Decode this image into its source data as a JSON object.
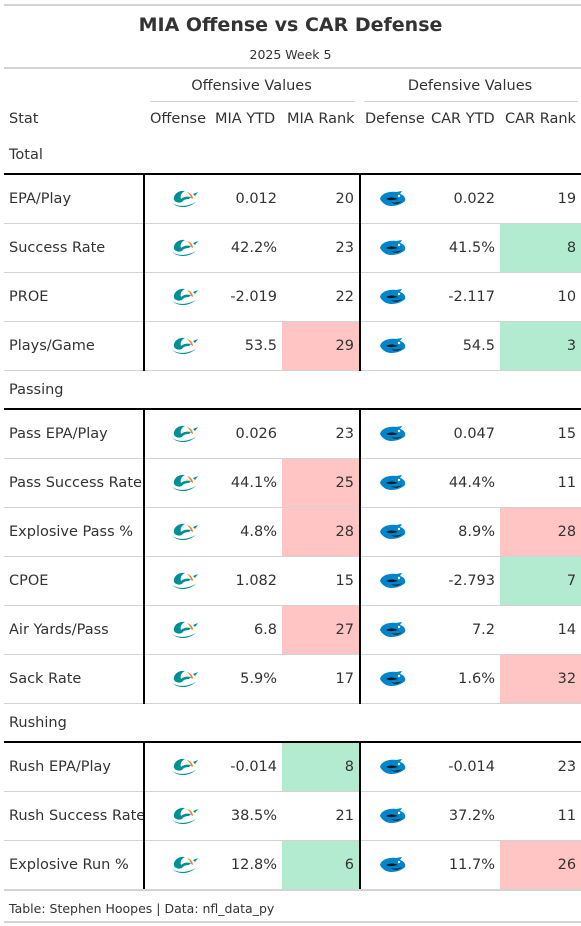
{
  "title": "MIA Offense vs CAR Defense",
  "subtitle": "2025 Week 5",
  "groups": {
    "offense": "Offensive Values",
    "defense": "Defensive Values"
  },
  "columns": {
    "stat": "Stat",
    "offense": "Offense",
    "mia_ytd": "MIA YTD",
    "mia_rank": "MIA Rank",
    "defense": "Defense",
    "car_ytd": "CAR YTD",
    "car_rank": "CAR Rank"
  },
  "icons": {
    "offense_logo": "dolphin-logo-icon",
    "defense_logo": "panther-logo-icon"
  },
  "colors": {
    "good": "#b3ebd0",
    "bad": "#ffc4c4",
    "dolphin_aqua": "#008e97",
    "dolphin_orange": "#f58220",
    "panther_blue": "#0085ca",
    "panther_black": "#101820"
  },
  "sections": [
    {
      "name": "Total",
      "rows": [
        {
          "stat": "EPA/Play",
          "mia_ytd": "0.012",
          "mia_rank": "20",
          "mia_rank_tier": "",
          "car_ytd": "0.022",
          "car_rank": "19",
          "car_rank_tier": ""
        },
        {
          "stat": "Success Rate",
          "mia_ytd": "42.2%",
          "mia_rank": "23",
          "mia_rank_tier": "",
          "car_ytd": "41.5%",
          "car_rank": "8",
          "car_rank_tier": "good"
        },
        {
          "stat": "PROE",
          "mia_ytd": "-2.019",
          "mia_rank": "22",
          "mia_rank_tier": "",
          "car_ytd": "-2.117",
          "car_rank": "10",
          "car_rank_tier": ""
        },
        {
          "stat": "Plays/Game",
          "mia_ytd": "53.5",
          "mia_rank": "29",
          "mia_rank_tier": "bad",
          "car_ytd": "54.5",
          "car_rank": "3",
          "car_rank_tier": "good"
        }
      ]
    },
    {
      "name": "Passing",
      "rows": [
        {
          "stat": "Pass EPA/Play",
          "mia_ytd": "0.026",
          "mia_rank": "23",
          "mia_rank_tier": "",
          "car_ytd": "0.047",
          "car_rank": "15",
          "car_rank_tier": ""
        },
        {
          "stat": "Pass Success Rate",
          "mia_ytd": "44.1%",
          "mia_rank": "25",
          "mia_rank_tier": "bad",
          "car_ytd": "44.4%",
          "car_rank": "11",
          "car_rank_tier": ""
        },
        {
          "stat": "Explosive Pass %",
          "mia_ytd": "4.8%",
          "mia_rank": "28",
          "mia_rank_tier": "bad",
          "car_ytd": "8.9%",
          "car_rank": "28",
          "car_rank_tier": "bad"
        },
        {
          "stat": "CPOE",
          "mia_ytd": "1.082",
          "mia_rank": "15",
          "mia_rank_tier": "",
          "car_ytd": "-2.793",
          "car_rank": "7",
          "car_rank_tier": "good"
        },
        {
          "stat": "Air Yards/Pass",
          "mia_ytd": "6.8",
          "mia_rank": "27",
          "mia_rank_tier": "bad",
          "car_ytd": "7.2",
          "car_rank": "14",
          "car_rank_tier": ""
        },
        {
          "stat": "Sack Rate",
          "mia_ytd": "5.9%",
          "mia_rank": "17",
          "mia_rank_tier": "",
          "car_ytd": "1.6%",
          "car_rank": "32",
          "car_rank_tier": "bad"
        }
      ]
    },
    {
      "name": "Rushing",
      "rows": [
        {
          "stat": "Rush EPA/Play",
          "mia_ytd": "-0.014",
          "mia_rank": "8",
          "mia_rank_tier": "good",
          "car_ytd": "-0.014",
          "car_rank": "23",
          "car_rank_tier": ""
        },
        {
          "stat": "Rush Success Rate",
          "mia_ytd": "38.5%",
          "mia_rank": "21",
          "mia_rank_tier": "",
          "car_ytd": "37.2%",
          "car_rank": "11",
          "car_rank_tier": ""
        },
        {
          "stat": "Explosive Run %",
          "mia_ytd": "12.8%",
          "mia_rank": "6",
          "mia_rank_tier": "good",
          "car_ytd": "11.7%",
          "car_rank": "26",
          "car_rank_tier": "bad"
        }
      ]
    }
  ],
  "footer": "Table: Stephen Hoopes | Data: nfl_data_py"
}
